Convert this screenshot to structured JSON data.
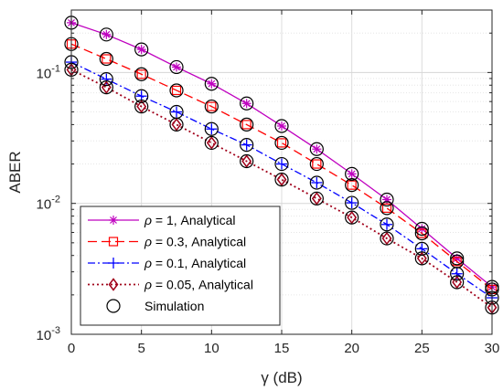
{
  "chart_data": {
    "type": "line",
    "xlabel": "γ (dB)",
    "ylabel": "ABER",
    "xlim": [
      0,
      30
    ],
    "ylim": [
      0.001,
      0.3
    ],
    "yscale": "log",
    "grid": "on",
    "legend_placement": "bottom-left",
    "x_ticks": [
      "0",
      "5",
      "10",
      "15",
      "20",
      "25",
      "30"
    ],
    "y_ticks": [
      {
        "value": 0.001,
        "base": "10",
        "exp": "-3"
      },
      {
        "value": 0.01,
        "base": "10",
        "exp": "-2"
      },
      {
        "value": 0.1,
        "base": "10",
        "exp": "-1"
      }
    ],
    "x": [
      0,
      2.5,
      5,
      7.5,
      10,
      12.5,
      15,
      17.5,
      20,
      22.5,
      25,
      27.5,
      30
    ],
    "series": [
      {
        "name_prefix": "ρ",
        "name_rest": " = 1, Analytical",
        "color": "#bf00bf",
        "marker": "asterisk",
        "dash": "",
        "values": [
          0.24,
          0.195,
          0.15,
          0.11,
          0.082,
          0.058,
          0.039,
          0.026,
          0.0168,
          0.0107,
          0.0064,
          0.0038,
          0.0023
        ]
      },
      {
        "name_prefix": "ρ",
        "name_rest": " = 0.3, Analytical",
        "color": "#ff0000",
        "marker": "square",
        "dash": "10,5",
        "values": [
          0.165,
          0.127,
          0.097,
          0.073,
          0.055,
          0.04,
          0.029,
          0.02,
          0.0138,
          0.0092,
          0.0059,
          0.0036,
          0.0022
        ]
      },
      {
        "name_prefix": "ρ",
        "name_rest": " = 0.1, Analytical",
        "color": "#0000ff",
        "marker": "plus",
        "dash": "8,3,2,3",
        "values": [
          0.12,
          0.089,
          0.066,
          0.05,
          0.037,
          0.028,
          0.02,
          0.0144,
          0.0101,
          0.0069,
          0.0045,
          0.0029,
          0.0019
        ]
      },
      {
        "name_prefix": "ρ",
        "name_rest": " = 0.05, Analytical",
        "color": "#a0001a",
        "marker": "diamond",
        "dash": "2,3",
        "values": [
          0.105,
          0.077,
          0.055,
          0.04,
          0.029,
          0.021,
          0.0152,
          0.0109,
          0.0078,
          0.0054,
          0.0038,
          0.0025,
          0.0016
        ]
      },
      {
        "name": "Simulation",
        "color": "#000000",
        "marker": "circle",
        "line": "none",
        "values_from_series": true
      }
    ]
  }
}
